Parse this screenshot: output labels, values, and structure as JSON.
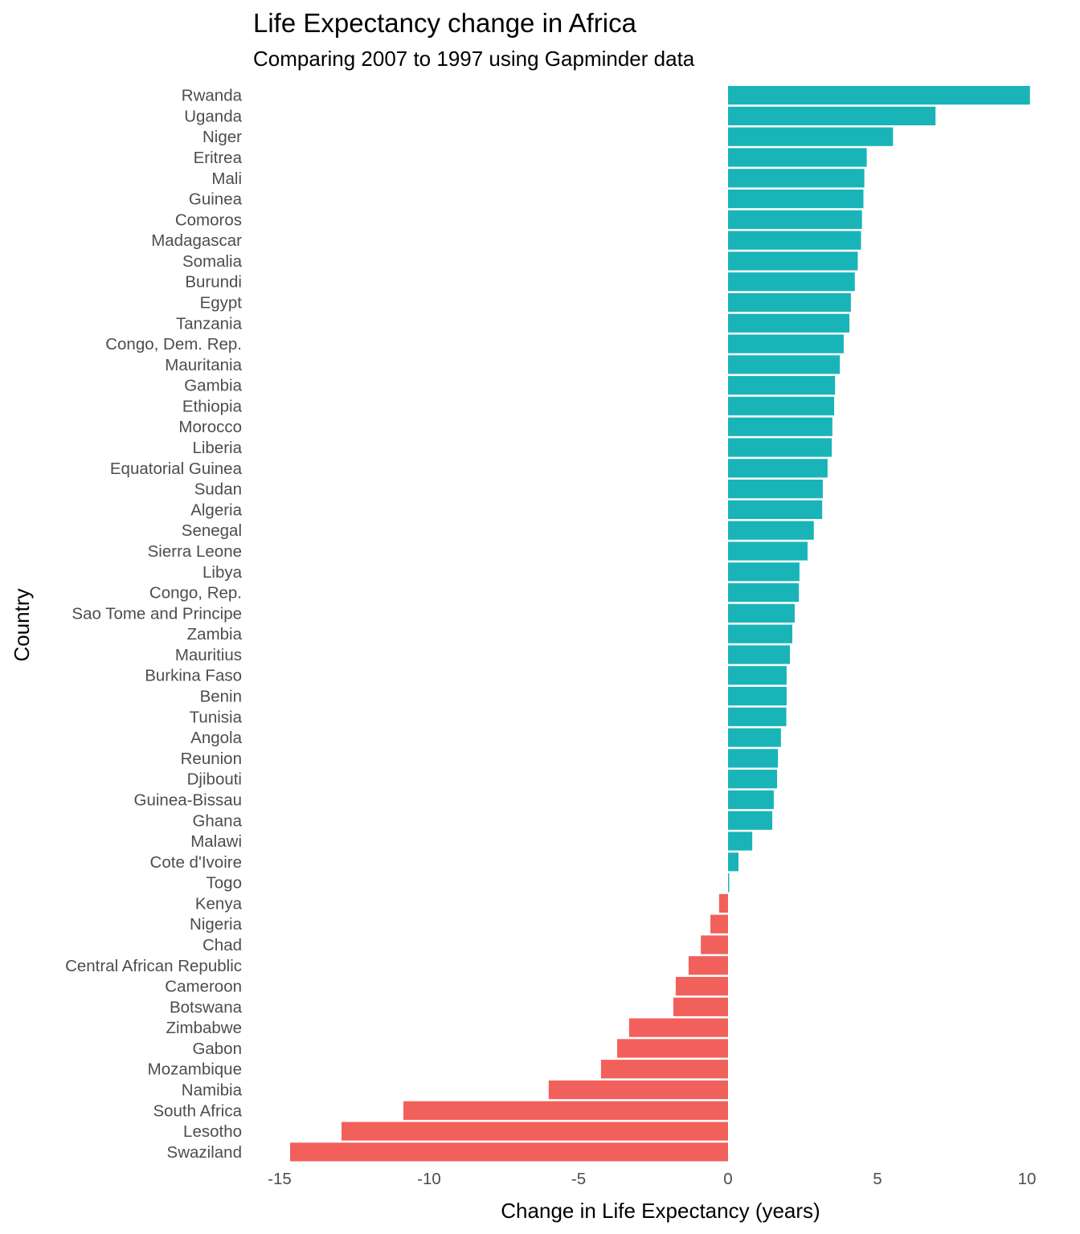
{
  "chart_data": {
    "type": "bar",
    "orientation": "horizontal",
    "title": "Life Expectancy change in Africa",
    "subtitle": "Comparing 2007 to 1997 using Gapminder data",
    "xlabel": "Change in Life Expectancy (years)",
    "ylabel": "Country",
    "xlim": [
      -15.5,
      10.2
    ],
    "xticks": [
      -15,
      -10,
      -5,
      0,
      5,
      10
    ],
    "xtick_labels": [
      "-15",
      "-10",
      "-5",
      "0",
      "5",
      "10"
    ],
    "grid": false,
    "legend": "none",
    "colors": {
      "positive": "#19B4B8",
      "negative": "#F2605C"
    },
    "categories": [
      "Rwanda",
      "Uganda",
      "Niger",
      "Eritrea",
      "Mali",
      "Guinea",
      "Comoros",
      "Madagascar",
      "Somalia",
      "Burundi",
      "Egypt",
      "Tanzania",
      "Congo, Dem. Rep.",
      "Mauritania",
      "Gambia",
      "Ethiopia",
      "Morocco",
      "Liberia",
      "Equatorial Guinea",
      "Sudan",
      "Algeria",
      "Senegal",
      "Sierra Leone",
      "Libya",
      "Congo, Rep.",
      "Sao Tome and Principe",
      "Zambia",
      "Mauritius",
      "Burkina Faso",
      "Benin",
      "Tunisia",
      "Angola",
      "Reunion",
      "Djibouti",
      "Guinea-Bissau",
      "Ghana",
      "Malawi",
      "Cote d'Ivoire",
      "Togo",
      "Kenya",
      "Nigeria",
      "Chad",
      "Central African Republic",
      "Cameroon",
      "Botswana",
      "Zimbabwe",
      "Gabon",
      "Mozambique",
      "Namibia",
      "South Africa",
      "Lesotho",
      "Swaziland"
    ],
    "values": [
      10.1,
      6.94,
      5.52,
      4.64,
      4.56,
      4.53,
      4.48,
      4.45,
      4.34,
      4.24,
      4.11,
      4.06,
      3.87,
      3.74,
      3.58,
      3.55,
      3.49,
      3.47,
      3.33,
      3.17,
      3.15,
      2.87,
      2.66,
      2.39,
      2.37,
      2.23,
      2.15,
      2.07,
      1.96,
      1.96,
      1.95,
      1.77,
      1.67,
      1.64,
      1.53,
      1.48,
      0.81,
      0.35,
      0.04,
      -0.3,
      -0.59,
      -0.91,
      -1.32,
      -1.75,
      -1.83,
      -3.31,
      -3.71,
      -4.25,
      -6.0,
      -10.86,
      -12.93,
      -14.65
    ]
  }
}
